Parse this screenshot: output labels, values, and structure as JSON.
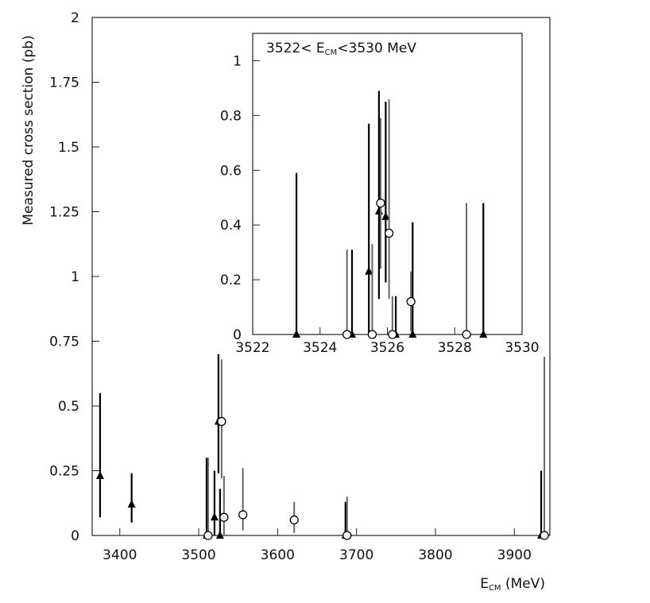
{
  "chart_data": [
    {
      "type": "scatter",
      "title": "",
      "xlabel": "E",
      "xlabel_sub": "CM",
      "xlabel_unit": " (MeV)",
      "ylabel": "Measured cross section (pb)",
      "xlim": [
        3365,
        3945
      ],
      "ylim": [
        0,
        2
      ],
      "xticks": [
        3400,
        3500,
        3600,
        3700,
        3800,
        3900
      ],
      "yticks": [
        0,
        0.25,
        0.5,
        0.75,
        1,
        1.25,
        1.5,
        1.75,
        2
      ],
      "ytick_labels": [
        "0",
        "0.25",
        "0.5",
        "0.75",
        "1",
        "1.25",
        "1.5",
        "1.75",
        "2"
      ],
      "series": [
        {
          "marker": "triangle",
          "points": [
            {
              "x": 3375,
              "y": 0.23,
              "ylo": 0.07,
              "yhi": 0.55
            },
            {
              "x": 3415,
              "y": 0.12,
              "ylo": 0.05,
              "yhi": 0.24
            },
            {
              "x": 3510,
              "y": 0.0,
              "ylo": 0.0,
              "yhi": 0.3
            },
            {
              "x": 3520,
              "y": 0.07,
              "ylo": 0.0,
              "yhi": 0.25
            },
            {
              "x": 3525,
              "y": 0.44,
              "ylo": 0.24,
              "yhi": 0.7
            },
            {
              "x": 3527,
              "y": 0.0,
              "ylo": 0.0,
              "yhi": 0.18
            },
            {
              "x": 3686,
              "y": 0.0,
              "ylo": 0.0,
              "yhi": 0.13
            },
            {
              "x": 3934,
              "y": 0.0,
              "ylo": 0.0,
              "yhi": 0.25
            }
          ]
        },
        {
          "marker": "circle",
          "points": [
            {
              "x": 3512,
              "y": 0.0,
              "ylo": 0.0,
              "yhi": 0.3
            },
            {
              "x": 3529,
              "y": 0.44,
              "ylo": 0.22,
              "yhi": 0.68
            },
            {
              "x": 3532,
              "y": 0.07,
              "ylo": 0.0,
              "yhi": 0.23
            },
            {
              "x": 3556,
              "y": 0.08,
              "ylo": 0.02,
              "yhi": 0.26
            },
            {
              "x": 3621,
              "y": 0.06,
              "ylo": 0.01,
              "yhi": 0.13
            },
            {
              "x": 3688,
              "y": 0.0,
              "ylo": 0.0,
              "yhi": 0.15
            },
            {
              "x": 3938,
              "y": 0.0,
              "ylo": 0.0,
              "yhi": 0.69
            }
          ]
        }
      ]
    },
    {
      "type": "scatter",
      "title_pre": "3522< E",
      "title_sub": "CM",
      "title_post": "<3530 MeV",
      "xlim": [
        3522,
        3530
      ],
      "ylim": [
        0,
        1.1
      ],
      "xticks": [
        3522,
        3524,
        3526,
        3528,
        3530
      ],
      "yticks": [
        0,
        0.2,
        0.4,
        0.6,
        0.8,
        1
      ],
      "ytick_labels": [
        "0",
        "0.2",
        "0.4",
        "0.6",
        "0.8",
        "1"
      ],
      "series": [
        {
          "marker": "triangle",
          "points": [
            {
              "x": 3523.3,
              "y": 0.0,
              "ylo": 0.0,
              "yhi": 0.59
            },
            {
              "x": 3524.95,
              "y": 0.0,
              "ylo": 0.0,
              "yhi": 0.31
            },
            {
              "x": 3525.45,
              "y": 0.23,
              "ylo": 0.0,
              "yhi": 0.77
            },
            {
              "x": 3525.75,
              "y": 0.45,
              "ylo": 0.13,
              "yhi": 0.89
            },
            {
              "x": 3525.95,
              "y": 0.43,
              "ylo": 0.19,
              "yhi": 0.85
            },
            {
              "x": 3526.25,
              "y": 0.0,
              "ylo": 0.0,
              "yhi": 0.14
            },
            {
              "x": 3526.75,
              "y": 0.0,
              "ylo": 0.0,
              "yhi": 0.41
            },
            {
              "x": 3528.85,
              "y": 0.0,
              "ylo": 0.0,
              "yhi": 0.48
            }
          ]
        },
        {
          "marker": "circle",
          "points": [
            {
              "x": 3524.8,
              "y": 0.0,
              "ylo": 0.0,
              "yhi": 0.31
            },
            {
              "x": 3525.55,
              "y": 0.0,
              "ylo": 0.0,
              "yhi": 0.33
            },
            {
              "x": 3525.8,
              "y": 0.48,
              "ylo": 0.24,
              "yhi": 0.79
            },
            {
              "x": 3526.05,
              "y": 0.37,
              "ylo": 0.13,
              "yhi": 0.86
            },
            {
              "x": 3526.15,
              "y": 0.0,
              "ylo": 0.0,
              "yhi": 0.14
            },
            {
              "x": 3526.7,
              "y": 0.12,
              "ylo": 0.01,
              "yhi": 0.23
            },
            {
              "x": 3528.35,
              "y": 0.0,
              "ylo": 0.0,
              "yhi": 0.48
            }
          ]
        }
      ]
    }
  ]
}
